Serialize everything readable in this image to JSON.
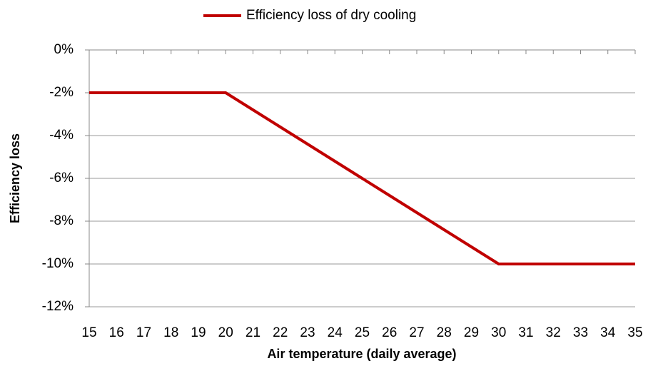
{
  "chart_data": {
    "type": "line",
    "xlabel": "Air temperature (daily average)",
    "ylabel": "Efficiency loss",
    "x": [
      15,
      16,
      17,
      18,
      19,
      20,
      21,
      22,
      23,
      24,
      25,
      26,
      27,
      28,
      29,
      30,
      31,
      32,
      33,
      34,
      35
    ],
    "series": [
      {
        "name": "Efficiency loss of dry cooling",
        "color": "#c00000",
        "values": [
          -2,
          -2,
          -2,
          -2,
          -2,
          -2,
          -2.8,
          -3.6,
          -4.4,
          -5.2,
          -6,
          -6.8,
          -7.6,
          -8.4,
          -9.2,
          -10,
          -10,
          -10,
          -10,
          -10,
          -10
        ]
      }
    ],
    "xlim": [
      15,
      35
    ],
    "xticks": [
      15,
      16,
      17,
      18,
      19,
      20,
      21,
      22,
      23,
      24,
      25,
      26,
      27,
      28,
      29,
      30,
      31,
      32,
      33,
      34,
      35
    ],
    "ylim": [
      -12,
      0
    ],
    "yticks": [
      {
        "value": 0,
        "label": "0%"
      },
      {
        "value": -2,
        "label": "-2%"
      },
      {
        "value": -4,
        "label": "-4%"
      },
      {
        "value": -6,
        "label": "-6%"
      },
      {
        "value": -8,
        "label": "-8%"
      },
      {
        "value": -10,
        "label": "-10%"
      },
      {
        "value": -12,
        "label": "-12%"
      }
    ],
    "grid": true,
    "legend": "top"
  }
}
